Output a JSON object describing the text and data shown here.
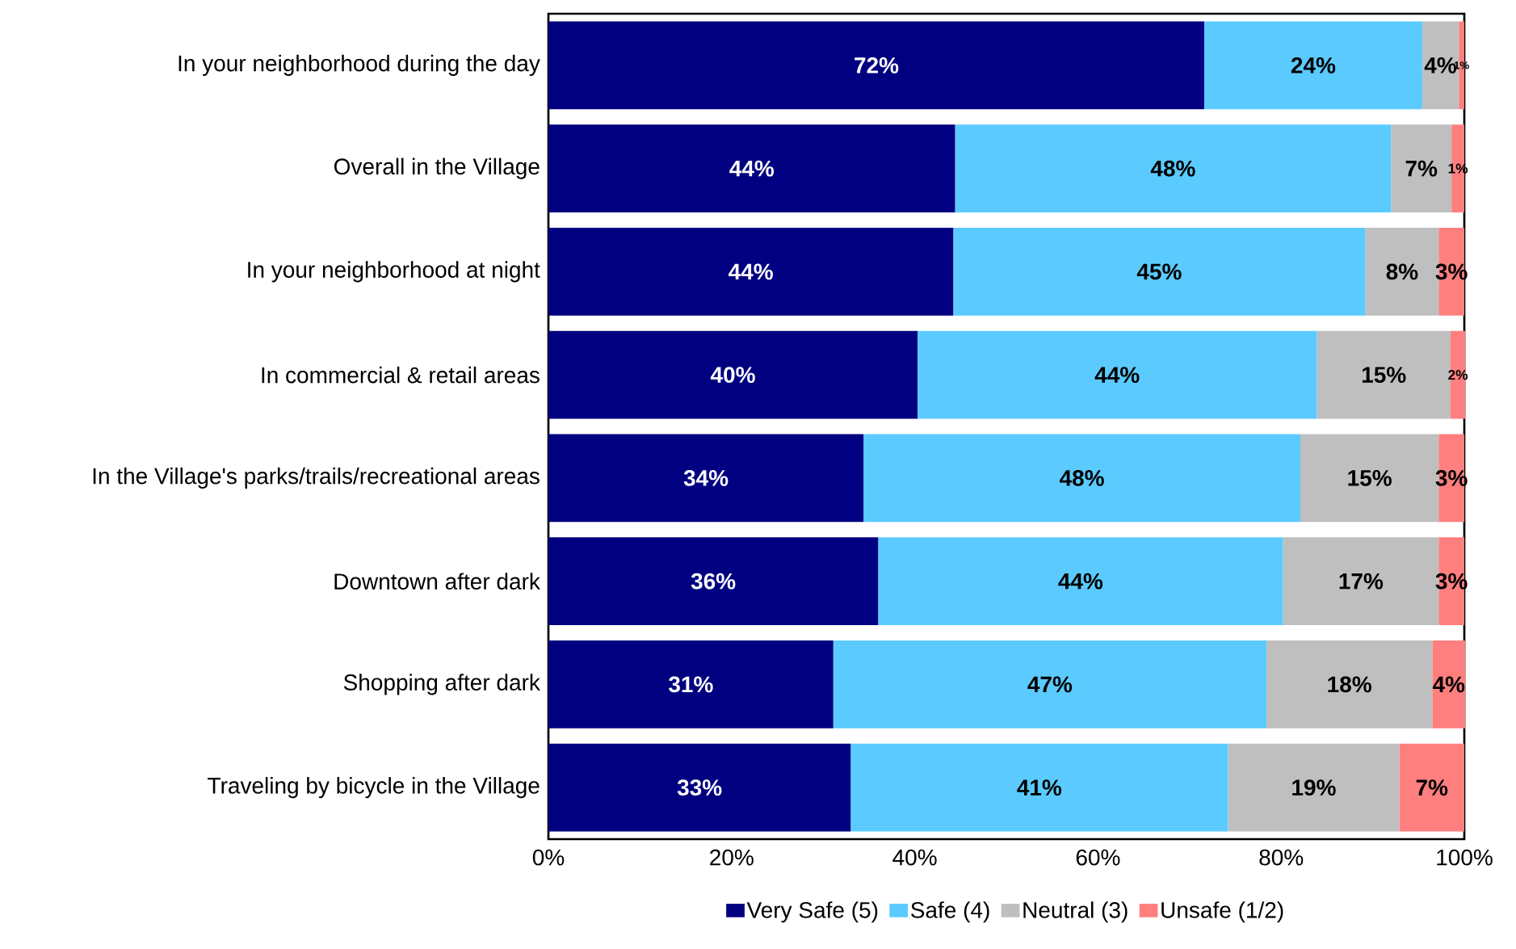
{
  "chart_data": {
    "type": "bar",
    "orientation": "horizontal",
    "stacked": true,
    "categories": [
      "In your neighborhood during the day",
      "Overall in the Village",
      "In your neighborhood at night",
      "In commercial & retail areas",
      "In the Village's parks/trails/recreational areas",
      "Downtown after dark",
      "Shopping after dark",
      "Traveling by bicycle in the Village"
    ],
    "series": [
      {
        "name": "Very Safe (5)",
        "color": "#000080",
        "values": [
          71.6,
          44.4,
          44.2,
          40.3,
          34.4,
          36.0,
          31.1,
          33.0
        ],
        "value_labels": [
          "72%",
          "44%",
          "44%",
          "40%",
          "34%",
          "36%",
          "31%",
          "33%"
        ]
      },
      {
        "name": "Safe (4)",
        "color": "#5bcbff",
        "values": [
          23.8,
          47.6,
          45.0,
          43.6,
          47.7,
          44.2,
          47.3,
          41.2
        ],
        "value_labels": [
          "24%",
          "48%",
          "45%",
          "44%",
          "48%",
          "44%",
          "47%",
          "41%"
        ]
      },
      {
        "name": "Neutral (3)",
        "color": "#bfbfbf",
        "values": [
          4.0,
          6.6,
          8.0,
          14.6,
          15.1,
          17.0,
          18.1,
          18.7
        ],
        "value_labels": [
          "4%",
          "7%",
          "8%",
          "15%",
          "15%",
          "17%",
          "18%",
          "19%"
        ]
      },
      {
        "name": "Unsafe (1/2)",
        "color": "#ff7f7f",
        "values": [
          0.6,
          1.4,
          2.8,
          1.6,
          2.8,
          2.8,
          3.6,
          7.1
        ],
        "value_labels": [
          "1%",
          "1%",
          "3%",
          "2%",
          "3%",
          "3%",
          "4%",
          "7%"
        ]
      }
    ],
    "xlim": [
      0,
      100
    ],
    "xticks": [
      {
        "value": 0,
        "label": "0%"
      },
      {
        "value": 20,
        "label": "20%"
      },
      {
        "value": 40,
        "label": "40%"
      },
      {
        "value": 60,
        "label": "60%"
      },
      {
        "value": 80,
        "label": "80%"
      },
      {
        "value": 100,
        "label": "100%"
      }
    ],
    "grid": false,
    "legend": "bottom"
  }
}
